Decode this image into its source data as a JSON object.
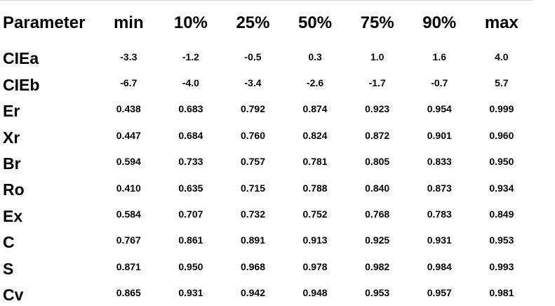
{
  "table": {
    "headers": [
      "Parameter",
      "min",
      "10%",
      "25%",
      "50%",
      "75%",
      "90%",
      "max"
    ],
    "rows": [
      {
        "name": "CIEa",
        "values": [
          "-3.3",
          "-1.2",
          "-0.5",
          "0.3",
          "1.0",
          "1.6",
          "4.0"
        ]
      },
      {
        "name": "CIEb",
        "values": [
          "-6.7",
          "-4.0",
          "-3.4",
          "-2.6",
          "-1.7",
          "-0.7",
          "5.7"
        ]
      },
      {
        "name": "Er",
        "values": [
          "0.438",
          "0.683",
          "0.792",
          "0.874",
          "0.923",
          "0.954",
          "0.999"
        ]
      },
      {
        "name": "Xr",
        "values": [
          "0.447",
          "0.684",
          "0.760",
          "0.824",
          "0.872",
          "0.901",
          "0.960"
        ]
      },
      {
        "name": "Br",
        "values": [
          "0.594",
          "0.733",
          "0.757",
          "0.781",
          "0.805",
          "0.833",
          "0.950"
        ]
      },
      {
        "name": "Ro",
        "values": [
          "0.410",
          "0.635",
          "0.715",
          "0.788",
          "0.840",
          "0.873",
          "0.934"
        ]
      },
      {
        "name": "Ex",
        "values": [
          "0.584",
          "0.707",
          "0.732",
          "0.752",
          "0.768",
          "0.783",
          "0.849"
        ]
      },
      {
        "name": "C",
        "values": [
          "0.767",
          "0.861",
          "0.891",
          "0.913",
          "0.925",
          "0.931",
          "0.953"
        ]
      },
      {
        "name": "S",
        "values": [
          "0.871",
          "0.950",
          "0.968",
          "0.978",
          "0.982",
          "0.984",
          "0.993"
        ]
      },
      {
        "name": "Cv",
        "values": [
          "0.865",
          "0.931",
          "0.942",
          "0.948",
          "0.953",
          "0.957",
          "0.981"
        ]
      }
    ]
  }
}
